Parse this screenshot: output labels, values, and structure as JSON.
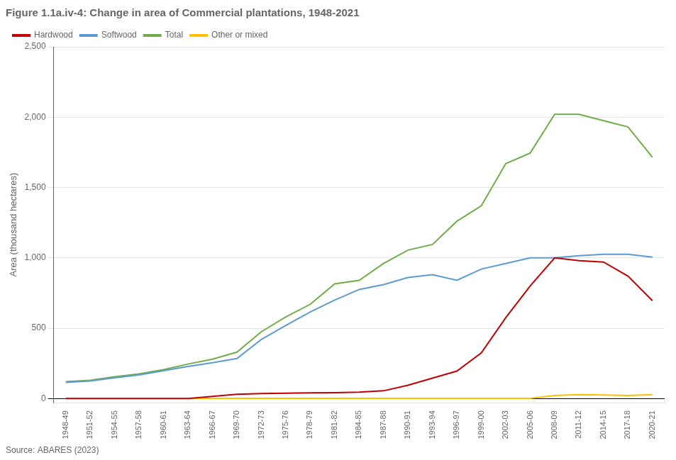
{
  "chart_data": {
    "type": "line",
    "title": "Figure 1.1a.iv-4: Change in area of Commercial plantations, 1948-2021",
    "y_label": "Area (thousand hectares)",
    "annotation": "Source: ABARES (2023)",
    "categories": [
      "1948-49",
      "1951-52",
      "1954-55",
      "1957-58",
      "1960-61",
      "1963-64",
      "1966-67",
      "1969-70",
      "1972-73",
      "1975-76",
      "1978-79",
      "1981-82",
      "1984-85",
      "1987-88",
      "1990-91",
      "1993-94",
      "1996-97",
      "1999-00",
      "2002-03",
      "2005-06",
      "2008-09",
      "2011-12",
      "2014-15",
      "2017-18",
      "2020-21"
    ],
    "series": [
      {
        "name": "Hardwood",
        "color": "#c00000",
        "values": [
          0,
          0,
          0,
          0,
          0,
          0,
          15,
          30,
          35,
          38,
          40,
          42,
          45,
          55,
          95,
          145,
          195,
          325,
          575,
          800,
          1000,
          980,
          970,
          870,
          695
        ]
      },
      {
        "name": "Softwood",
        "color": "#5b9bd5",
        "values": [
          115,
          125,
          148,
          168,
          198,
          228,
          255,
          285,
          420,
          520,
          615,
          700,
          775,
          810,
          860,
          880,
          840,
          920,
          960,
          1000,
          1000,
          1015,
          1025,
          1025,
          1005
        ]
      },
      {
        "name": "Total",
        "color": "#70ad47",
        "values": [
          120,
          130,
          155,
          175,
          205,
          245,
          280,
          330,
          475,
          580,
          670,
          815,
          840,
          960,
          1055,
          1095,
          1260,
          1370,
          1670,
          1745,
          2020,
          2020,
          1975,
          1930,
          1715
        ]
      },
      {
        "name": "Other or mixed",
        "color": "#ffc000",
        "values": [
          2,
          2,
          2,
          2,
          2,
          2,
          2,
          2,
          2,
          2,
          2,
          2,
          2,
          2,
          2,
          2,
          2,
          2,
          2,
          2,
          22,
          28,
          25,
          22,
          28
        ]
      }
    ],
    "ylim": [
      -30,
      2500
    ],
    "yticks": [
      0,
      500,
      {
        "value": 1000,
        "label": "1,000"
      },
      {
        "value": 1500,
        "label": "1,500"
      },
      {
        "value": 2000,
        "label": "2,000"
      },
      {
        "value": 2500,
        "label": "2,500"
      }
    ],
    "grid": true,
    "legend": "upper left"
  }
}
